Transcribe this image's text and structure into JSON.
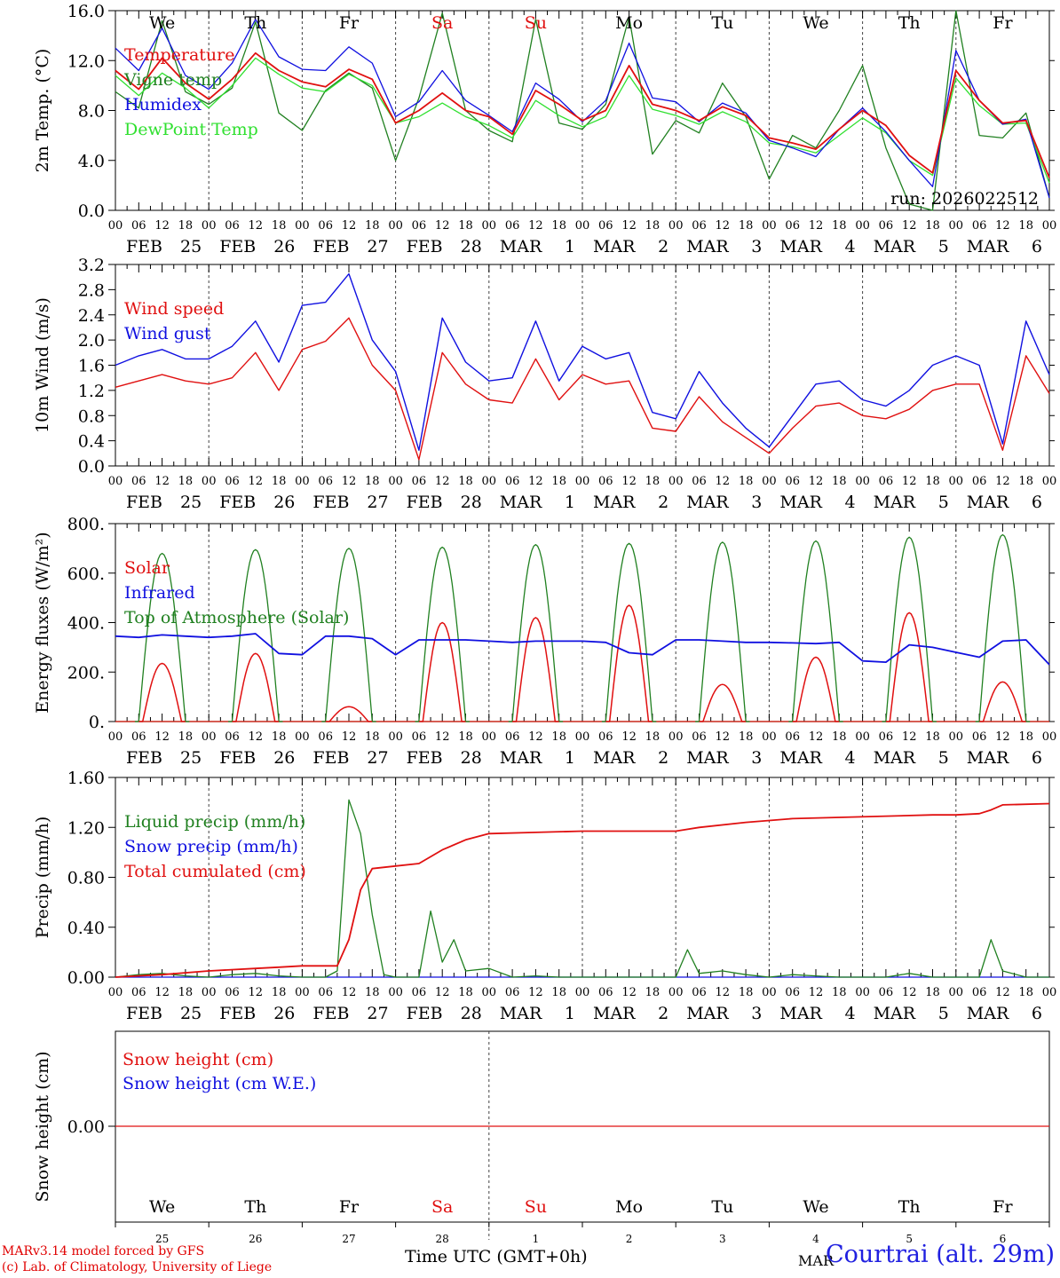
{
  "meta": {
    "run_label": "run: 2026022512",
    "time_axis_label": "Time UTC (GMT+0h)",
    "month_label": "MAR",
    "station": "Courtrai (alt. 29m)",
    "credit_line1": "MARv3.14 model forced by GFS",
    "credit_line2": "(c) Lab. of Climatology, University of Liege"
  },
  "days": [
    {
      "date": "FEB 25",
      "dow": "We",
      "num": "25",
      "weekend": false
    },
    {
      "date": "FEB 26",
      "dow": "Th",
      "num": "26",
      "weekend": false
    },
    {
      "date": "FEB 27",
      "dow": "Fr",
      "num": "27",
      "weekend": false
    },
    {
      "date": "FEB 28",
      "dow": "Sa",
      "num": "28",
      "weekend": true
    },
    {
      "date": "MAR 1",
      "dow": "Su",
      "num": "1",
      "weekend": true
    },
    {
      "date": "MAR 2",
      "dow": "Mo",
      "num": "2",
      "weekend": false
    },
    {
      "date": "MAR 3",
      "dow": "Tu",
      "num": "3",
      "weekend": false
    },
    {
      "date": "MAR 4",
      "dow": "We",
      "num": "4",
      "weekend": false
    },
    {
      "date": "MAR 5",
      "dow": "Th",
      "num": "5",
      "weekend": false
    },
    {
      "date": "MAR 6",
      "dow": "Fr",
      "num": "6",
      "weekend": false
    }
  ],
  "hour_labels": [
    "00",
    "06",
    "12",
    "18"
  ],
  "last_hour_label": "00",
  "colors": {
    "red": "#e01010",
    "green": "#208020",
    "blue": "#1010e0",
    "lightgreen": "#30e030",
    "axis": "#000000",
    "grid": "#444444"
  },
  "chart_data": [
    {
      "id": "temp",
      "type": "line",
      "ylabel": "2m Temp. (°C)",
      "ylim": [
        0,
        16
      ],
      "yticks": [
        "0.0",
        "4.0",
        "8.0",
        "12.0",
        "16.0"
      ],
      "x_hours": [
        0,
        6,
        12,
        18,
        24,
        30,
        36,
        42,
        48,
        54,
        60,
        66,
        72,
        78,
        84,
        90,
        96,
        102,
        108,
        114,
        120,
        126,
        132,
        138,
        144,
        150,
        156,
        162,
        168,
        174,
        180,
        186,
        192,
        198,
        204,
        210,
        216,
        222,
        228,
        234,
        240
      ],
      "series": [
        {
          "name": "Temperature",
          "color": "#e01010",
          "values": [
            11.2,
            9.7,
            12.2,
            10.2,
            8.9,
            10.5,
            12.6,
            11.2,
            10.3,
            9.9,
            11.3,
            10.5,
            7.0,
            8.0,
            9.4,
            8.0,
            7.5,
            6.1,
            9.6,
            8.5,
            7.2,
            8.0,
            11.6,
            8.5,
            8.0,
            7.2,
            8.3,
            7.6,
            5.8,
            5.4,
            4.9,
            6.5,
            8.0,
            6.8,
            4.4,
            3.0,
            11.2,
            8.8,
            7.0,
            7.2,
            2.6
          ]
        },
        {
          "name": "Vigne temp",
          "color": "#208020",
          "values": [
            9.5,
            8.2,
            15.2,
            9.5,
            8.5,
            9.8,
            15.1,
            7.8,
            6.4,
            9.6,
            11.0,
            9.8,
            4.0,
            9.0,
            15.8,
            8.0,
            6.4,
            5.5,
            15.3,
            7.0,
            6.5,
            8.5,
            15.5,
            4.5,
            7.2,
            6.2,
            10.2,
            7.5,
            2.5,
            6.0,
            5.0,
            8.0,
            11.6,
            5.0,
            0.5,
            0.0,
            16.0,
            6.0,
            5.8,
            7.8,
            1.0
          ]
        },
        {
          "name": "Humidex",
          "color": "#1010e0",
          "values": [
            13.0,
            11.2,
            14.6,
            10.8,
            9.7,
            11.8,
            15.3,
            12.3,
            11.3,
            11.2,
            13.1,
            11.8,
            7.5,
            8.7,
            11.2,
            8.8,
            7.6,
            6.3,
            10.2,
            8.9,
            7.1,
            8.8,
            13.4,
            9.0,
            8.7,
            7.1,
            8.6,
            7.8,
            5.6,
            5.0,
            4.3,
            6.5,
            8.2,
            6.3,
            4.0,
            1.9,
            12.8,
            8.8,
            6.9,
            7.3,
            1.0
          ]
        },
        {
          "name": "DewPoint Temp",
          "color": "#30e030",
          "values": [
            10.8,
            9.2,
            11.0,
            9.8,
            8.2,
            10.0,
            12.2,
            10.9,
            9.8,
            9.5,
            10.9,
            10.0,
            7.0,
            7.5,
            8.6,
            7.5,
            6.8,
            5.8,
            8.8,
            7.6,
            6.7,
            7.5,
            10.8,
            8.1,
            7.6,
            6.9,
            7.9,
            7.1,
            5.4,
            5.1,
            4.6,
            6.0,
            7.4,
            6.2,
            4.0,
            2.8,
            10.6,
            8.4,
            6.9,
            7.0,
            2.2
          ]
        }
      ]
    },
    {
      "id": "wind",
      "type": "line",
      "ylabel": "10m Wind (m/s)",
      "ylim": [
        0,
        3.2
      ],
      "yticks": [
        "0.0",
        "0.4",
        "0.8",
        "1.2",
        "1.6",
        "2.0",
        "2.4",
        "2.8",
        "3.2"
      ],
      "x_hours": [
        0,
        6,
        12,
        18,
        24,
        30,
        36,
        42,
        48,
        54,
        60,
        66,
        72,
        78,
        84,
        90,
        96,
        102,
        108,
        114,
        120,
        126,
        132,
        138,
        144,
        150,
        156,
        162,
        168,
        174,
        180,
        186,
        192,
        198,
        204,
        210,
        216,
        222,
        228,
        234,
        240
      ],
      "series": [
        {
          "name": "Wind speed",
          "color": "#e01010",
          "values": [
            1.25,
            1.35,
            1.45,
            1.35,
            1.3,
            1.4,
            1.8,
            1.2,
            1.85,
            1.98,
            2.35,
            1.6,
            1.2,
            0.1,
            1.8,
            1.3,
            1.05,
            1.0,
            1.7,
            1.05,
            1.45,
            1.3,
            1.35,
            0.6,
            0.55,
            1.1,
            0.7,
            0.45,
            0.2,
            0.6,
            0.95,
            1.0,
            0.8,
            0.75,
            0.9,
            1.2,
            1.3,
            1.3,
            0.25,
            1.75,
            1.15
          ]
        },
        {
          "name": "Wind gust",
          "color": "#1010e0",
          "values": [
            1.6,
            1.75,
            1.85,
            1.7,
            1.7,
            1.9,
            2.3,
            1.65,
            2.55,
            2.6,
            3.05,
            2.0,
            1.5,
            0.25,
            2.35,
            1.65,
            1.35,
            1.4,
            2.3,
            1.35,
            1.9,
            1.7,
            1.8,
            0.85,
            0.75,
            1.5,
            1.0,
            0.6,
            0.3,
            0.8,
            1.3,
            1.35,
            1.05,
            0.95,
            1.2,
            1.6,
            1.75,
            1.6,
            0.35,
            2.3,
            1.45
          ]
        }
      ]
    },
    {
      "id": "energy",
      "type": "line",
      "ylabel": "Energy fluxes (W/m²)",
      "ylim": [
        0,
        800
      ],
      "yticks": [
        "0.",
        "200.",
        "400.",
        "600.",
        "800."
      ],
      "solar_peaks": [
        235,
        275,
        60,
        400,
        420,
        470,
        150,
        260,
        440,
        160
      ],
      "toa_peaks": [
        680,
        695,
        700,
        705,
        715,
        720,
        725,
        730,
        745,
        755
      ],
      "series": [
        {
          "name": "Solar",
          "color": "#e01010"
        },
        {
          "name": "Infrared",
          "color": "#1010e0",
          "x_hours": [
            0,
            6,
            12,
            18,
            24,
            30,
            36,
            42,
            48,
            54,
            60,
            66,
            72,
            78,
            84,
            90,
            96,
            102,
            108,
            114,
            120,
            126,
            132,
            138,
            144,
            150,
            156,
            162,
            168,
            174,
            180,
            186,
            192,
            198,
            204,
            210,
            216,
            222,
            228,
            234,
            240
          ],
          "values": [
            345,
            340,
            350,
            345,
            340,
            345,
            355,
            275,
            270,
            345,
            345,
            335,
            270,
            330,
            330,
            330,
            325,
            320,
            325,
            325,
            325,
            320,
            278,
            270,
            330,
            330,
            325,
            320,
            320,
            318,
            315,
            320,
            245,
            240,
            310,
            300,
            280,
            260,
            325,
            330,
            230
          ]
        },
        {
          "name": "Top of Atmosphere (Solar)",
          "color": "#208020"
        }
      ]
    },
    {
      "id": "precip",
      "type": "line",
      "ylabel": "Precip (mm/h)",
      "ylim": [
        0,
        1.6
      ],
      "yticks": [
        "0.00",
        "0.40",
        "0.80",
        "1.20",
        "1.60"
      ],
      "series": [
        {
          "name": "Liquid precip (mm/h)",
          "color": "#208020",
          "x_hours": [
            0,
            6,
            12,
            18,
            24,
            30,
            36,
            42,
            48,
            54,
            57,
            60,
            63,
            66,
            69,
            72,
            78,
            81,
            84,
            87,
            90,
            96,
            102,
            108,
            114,
            120,
            126,
            132,
            138,
            144,
            147,
            150,
            156,
            162,
            168,
            174,
            180,
            186,
            192,
            198,
            204,
            210,
            216,
            222,
            225,
            228,
            234,
            240
          ],
          "values": [
            0.0,
            0.02,
            0.03,
            0.01,
            0.0,
            0.02,
            0.03,
            0.01,
            0.0,
            0.0,
            0.05,
            1.42,
            1.15,
            0.5,
            0.02,
            0.0,
            0.0,
            0.53,
            0.12,
            0.3,
            0.05,
            0.07,
            0.0,
            0.01,
            0.0,
            0.0,
            0.0,
            0.0,
            0.0,
            0.0,
            0.22,
            0.03,
            0.05,
            0.02,
            0.0,
            0.02,
            0.01,
            0.0,
            0.0,
            0.0,
            0.03,
            0.0,
            0.0,
            0.0,
            0.3,
            0.05,
            0.0,
            0.0
          ]
        },
        {
          "name": "Snow precip (mm/h)",
          "color": "#1010e0",
          "x_hours": [
            0,
            240
          ],
          "values": [
            0.0,
            0.0
          ]
        },
        {
          "name": "Total cumulated (cm)",
          "color": "#e01010",
          "x_hours": [
            0,
            12,
            24,
            36,
            42,
            48,
            54,
            57,
            60,
            63,
            66,
            72,
            78,
            84,
            90,
            96,
            108,
            120,
            132,
            144,
            150,
            162,
            174,
            186,
            198,
            210,
            216,
            222,
            225,
            228,
            240
          ],
          "values": [
            0.0,
            0.02,
            0.05,
            0.07,
            0.08,
            0.09,
            0.09,
            0.09,
            0.3,
            0.7,
            0.87,
            0.89,
            0.91,
            1.02,
            1.1,
            1.15,
            1.16,
            1.17,
            1.17,
            1.17,
            1.2,
            1.24,
            1.27,
            1.28,
            1.29,
            1.3,
            1.3,
            1.31,
            1.34,
            1.38,
            1.39
          ]
        }
      ]
    },
    {
      "id": "snow",
      "type": "line",
      "ylabel": "Snow height (cm)",
      "yticks": [
        "0.00"
      ],
      "series": [
        {
          "name": "Snow height (cm)",
          "color": "#e01010",
          "x_hours": [
            0,
            240
          ],
          "values": [
            0.0,
            0.0
          ]
        },
        {
          "name": "Snow height (cm W.E.)",
          "color": "#1010e0",
          "x_hours": [
            0,
            240
          ],
          "values": [
            0.0,
            0.0
          ]
        }
      ]
    }
  ]
}
